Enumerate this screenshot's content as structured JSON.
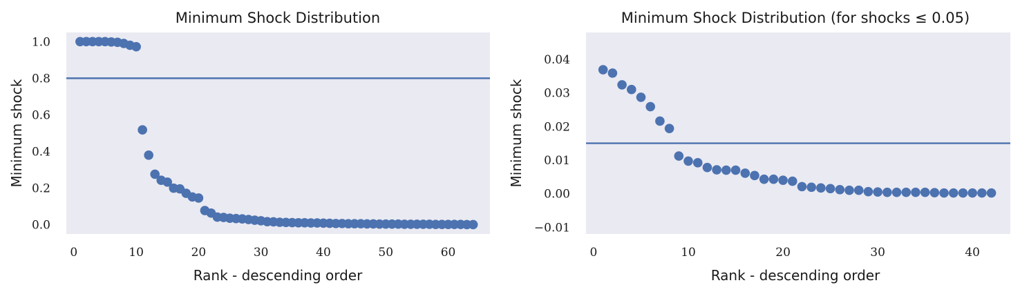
{
  "chart_data": [
    {
      "type": "scatter",
      "title": "Minimum Shock Distribution",
      "xlabel": "Rank - descending order",
      "ylabel": "Minimum shock",
      "xlim": [
        -1.2,
        66.7
      ],
      "ylim": [
        -0.05,
        1.05
      ],
      "xticks": [
        0,
        10,
        20,
        30,
        40,
        50,
        60
      ],
      "xtick_labels": [
        "0",
        "10",
        "20",
        "30",
        "40",
        "50",
        "60"
      ],
      "yticks": [
        0.0,
        0.2,
        0.4,
        0.6,
        0.8,
        1.0
      ],
      "ytick_labels": [
        "0.0",
        "0.2",
        "0.4",
        "0.6",
        "0.8",
        "1.0"
      ],
      "hline": 0.8,
      "grid": false,
      "x": [
        1,
        2,
        3,
        4,
        5,
        6,
        7,
        8,
        9,
        10,
        11,
        12,
        13,
        14,
        15,
        16,
        17,
        18,
        19,
        20,
        21,
        22,
        23,
        24,
        25,
        26,
        27,
        28,
        29,
        30,
        31,
        32,
        33,
        34,
        35,
        36,
        37,
        38,
        39,
        40,
        41,
        42,
        43,
        44,
        45,
        46,
        47,
        48,
        49,
        50,
        51,
        52,
        53,
        54,
        55,
        56,
        57,
        58,
        59,
        60,
        61,
        62,
        63,
        64
      ],
      "y": [
        1.0,
        1.0,
        1.0,
        1.0,
        1.0,
        0.998,
        0.996,
        0.99,
        0.98,
        0.972,
        0.518,
        0.38,
        0.276,
        0.243,
        0.233,
        0.2,
        0.196,
        0.172,
        0.152,
        0.146,
        0.078,
        0.064,
        0.042,
        0.04,
        0.036,
        0.034,
        0.032,
        0.029,
        0.025,
        0.022,
        0.017,
        0.016,
        0.014,
        0.013,
        0.012,
        0.011,
        0.011,
        0.01,
        0.01,
        0.009,
        0.008,
        0.007,
        0.007,
        0.006,
        0.006,
        0.006,
        0.005,
        0.005,
        0.004,
        0.004,
        0.004,
        0.004,
        0.003,
        0.003,
        0.003,
        0.003,
        0.003,
        0.002,
        0.002,
        0.002,
        0.002,
        0.002,
        0.001,
        0.001
      ]
    },
    {
      "type": "scatter",
      "title": "Minimum Shock Distribution (for shocks ≤ 0.05)",
      "xlabel": "Rank - descending order",
      "ylabel": "Minimum shock",
      "xlim": [
        -0.8,
        44
      ],
      "ylim": [
        -0.012,
        0.048
      ],
      "xticks": [
        0,
        10,
        20,
        30,
        40
      ],
      "xtick_labels": [
        "0",
        "10",
        "20",
        "30",
        "40"
      ],
      "yticks": [
        -0.01,
        0.0,
        0.01,
        0.02,
        0.03,
        0.04
      ],
      "ytick_labels": [
        "−0.01",
        "0.00",
        "0.01",
        "0.02",
        "0.03",
        "0.04"
      ],
      "hline": 0.015,
      "grid": false,
      "x": [
        1,
        2,
        3,
        4,
        5,
        6,
        7,
        8,
        9,
        10,
        11,
        12,
        13,
        14,
        15,
        16,
        17,
        18,
        19,
        20,
        21,
        22,
        23,
        24,
        25,
        26,
        27,
        28,
        29,
        30,
        31,
        32,
        33,
        34,
        35,
        36,
        37,
        38,
        39,
        40,
        41,
        42
      ],
      "y": [
        0.0369,
        0.0359,
        0.0324,
        0.031,
        0.0287,
        0.0259,
        0.0216,
        0.0194,
        0.0112,
        0.0097,
        0.0092,
        0.0078,
        0.0071,
        0.007,
        0.007,
        0.0061,
        0.0054,
        0.0043,
        0.0043,
        0.004,
        0.0037,
        0.0021,
        0.0019,
        0.0017,
        0.0015,
        0.0012,
        0.001,
        0.001,
        0.0006,
        0.0005,
        0.0004,
        0.0004,
        0.0004,
        0.0004,
        0.0004,
        0.0003,
        0.0002,
        0.0002,
        0.0002,
        0.0002,
        0.0002,
        0.0002
      ]
    }
  ],
  "colors": {
    "plot_background": "#eaeaf2",
    "marker": "#4c72b0",
    "hline": "#4c72b0",
    "text": "#1a1a1a"
  }
}
